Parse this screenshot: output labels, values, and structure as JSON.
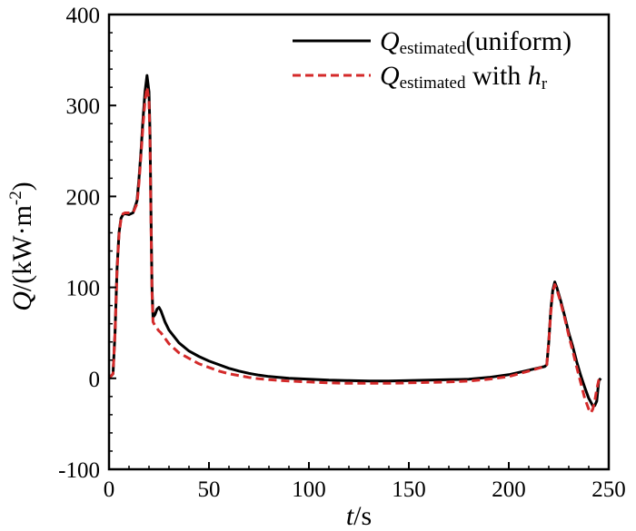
{
  "chart_data": {
    "type": "line",
    "title": "",
    "xlabel": {
      "var": "t",
      "unit": "/s"
    },
    "ylabel": {
      "var": "Q",
      "unit_main": "/(kW·m",
      "unit_sup": "-2",
      "unit_close": ")"
    },
    "xlim": [
      0,
      250
    ],
    "ylim": [
      -100,
      400
    ],
    "x_ticks": [
      0,
      50,
      100,
      150,
      200,
      250
    ],
    "y_ticks": [
      -100,
      0,
      100,
      200,
      300,
      400
    ],
    "grid": false,
    "legend_position": "top-right",
    "legend": [
      {
        "var": "Q",
        "sub": "estimated",
        "suffix": "(uniform)",
        "suffix_var": "",
        "suffix_var_sub": ""
      },
      {
        "var": "Q",
        "sub": "estimated",
        "suffix": " with ",
        "suffix_var": "h",
        "suffix_var_sub": "r"
      }
    ],
    "series": [
      {
        "color": "#000000",
        "dash": "solid",
        "points": [
          [
            0,
            0
          ],
          [
            2,
            5
          ],
          [
            3,
            50
          ],
          [
            4,
            120
          ],
          [
            5,
            160
          ],
          [
            6,
            176
          ],
          [
            7,
            180
          ],
          [
            8,
            181
          ],
          [
            10,
            180
          ],
          [
            12,
            182
          ],
          [
            14,
            195
          ],
          [
            15,
            220
          ],
          [
            16,
            250
          ],
          [
            17,
            285
          ],
          [
            18,
            315
          ],
          [
            19,
            333
          ],
          [
            20,
            315
          ],
          [
            20.5,
            270
          ],
          [
            21,
            180
          ],
          [
            21.5,
            100
          ],
          [
            22,
            67
          ],
          [
            23,
            70
          ],
          [
            24,
            76
          ],
          [
            25,
            78
          ],
          [
            26,
            74
          ],
          [
            28,
            62
          ],
          [
            30,
            53
          ],
          [
            35,
            39
          ],
          [
            40,
            30
          ],
          [
            45,
            24
          ],
          [
            50,
            19
          ],
          [
            55,
            15
          ],
          [
            60,
            11
          ],
          [
            65,
            8
          ],
          [
            70,
            5.5
          ],
          [
            75,
            3.5
          ],
          [
            80,
            2
          ],
          [
            90,
            0
          ],
          [
            100,
            -1
          ],
          [
            110,
            -2
          ],
          [
            120,
            -2.5
          ],
          [
            130,
            -3
          ],
          [
            140,
            -3
          ],
          [
            150,
            -2.5
          ],
          [
            160,
            -2
          ],
          [
            170,
            -1.5
          ],
          [
            180,
            -1
          ],
          [
            190,
            1
          ],
          [
            200,
            4
          ],
          [
            210,
            9
          ],
          [
            218,
            13
          ],
          [
            219,
            15
          ],
          [
            220,
            40
          ],
          [
            221,
            75
          ],
          [
            222,
            97
          ],
          [
            223,
            106
          ],
          [
            224,
            100
          ],
          [
            226,
            85
          ],
          [
            228,
            68
          ],
          [
            230,
            50
          ],
          [
            232,
            35
          ],
          [
            234,
            18
          ],
          [
            236,
            3
          ],
          [
            238,
            -10
          ],
          [
            240,
            -22
          ],
          [
            242,
            -30
          ],
          [
            243,
            -30
          ],
          [
            244,
            -25
          ],
          [
            245,
            -3
          ],
          [
            246,
            0
          ]
        ]
      },
      {
        "color": "#d42a2a",
        "dash": "dashed",
        "points": [
          [
            0,
            0
          ],
          [
            2,
            5
          ],
          [
            3,
            50
          ],
          [
            4,
            118
          ],
          [
            5,
            158
          ],
          [
            6,
            175
          ],
          [
            7,
            181
          ],
          [
            8,
            182
          ],
          [
            10,
            182
          ],
          [
            12,
            182
          ],
          [
            14,
            192
          ],
          [
            15,
            215
          ],
          [
            16,
            245
          ],
          [
            17,
            278
          ],
          [
            18,
            305
          ],
          [
            19,
            320
          ],
          [
            20,
            305
          ],
          [
            20.5,
            260
          ],
          [
            21,
            170
          ],
          [
            21.5,
            95
          ],
          [
            22,
            62
          ],
          [
            23,
            58
          ],
          [
            24,
            55
          ],
          [
            25,
            52
          ],
          [
            26,
            50
          ],
          [
            28,
            44
          ],
          [
            30,
            38
          ],
          [
            35,
            28
          ],
          [
            40,
            22
          ],
          [
            45,
            16
          ],
          [
            50,
            12
          ],
          [
            55,
            8
          ],
          [
            60,
            5
          ],
          [
            65,
            3
          ],
          [
            70,
            1
          ],
          [
            75,
            -0.5
          ],
          [
            80,
            -1.5
          ],
          [
            90,
            -3
          ],
          [
            100,
            -4
          ],
          [
            110,
            -5
          ],
          [
            120,
            -5.5
          ],
          [
            130,
            -5.5
          ],
          [
            140,
            -5.5
          ],
          [
            150,
            -5
          ],
          [
            160,
            -4.5
          ],
          [
            170,
            -4
          ],
          [
            180,
            -3
          ],
          [
            190,
            -1
          ],
          [
            200,
            2
          ],
          [
            210,
            8
          ],
          [
            218,
            13
          ],
          [
            219,
            15
          ],
          [
            220,
            40
          ],
          [
            221,
            72
          ],
          [
            222,
            95
          ],
          [
            223,
            103
          ],
          [
            224,
            98
          ],
          [
            226,
            83
          ],
          [
            228,
            66
          ],
          [
            230,
            47
          ],
          [
            232,
            30
          ],
          [
            234,
            12
          ],
          [
            236,
            -5
          ],
          [
            238,
            -22
          ],
          [
            240,
            -34
          ],
          [
            241,
            -38
          ],
          [
            242,
            -34
          ],
          [
            243,
            -25
          ],
          [
            244,
            -12
          ],
          [
            245,
            -2
          ],
          [
            246,
            0
          ]
        ]
      }
    ]
  }
}
